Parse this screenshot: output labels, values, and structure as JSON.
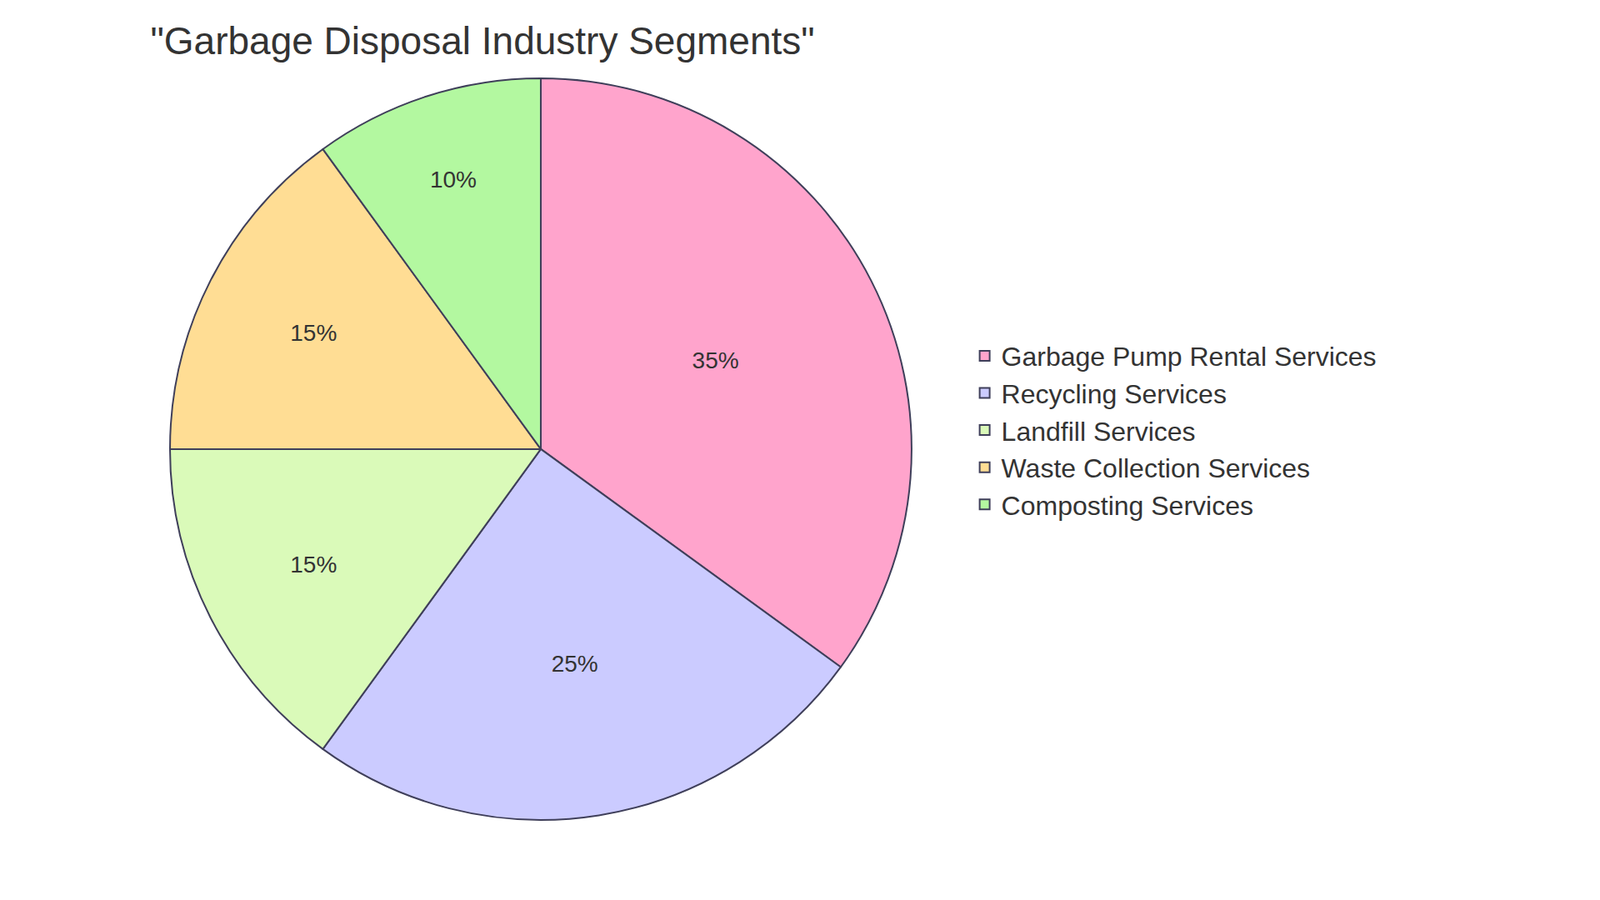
{
  "chart_data": {
    "type": "pie",
    "title": "\"Garbage Disposal Industry Segments\"",
    "categories": [
      "Garbage Pump Rental Services",
      "Recycling Services",
      "Landfill Services",
      "Waste Collection Services",
      "Composting Services"
    ],
    "values": [
      35,
      25,
      15,
      15,
      10
    ],
    "value_labels": [
      "35%",
      "25%",
      "15%",
      "15%",
      "10%"
    ],
    "colors": [
      "#ffa4cc",
      "#cbcbff",
      "#dafab9",
      "#ffdd94",
      "#b3f8a0"
    ],
    "data_labels": true,
    "legend": "right"
  }
}
